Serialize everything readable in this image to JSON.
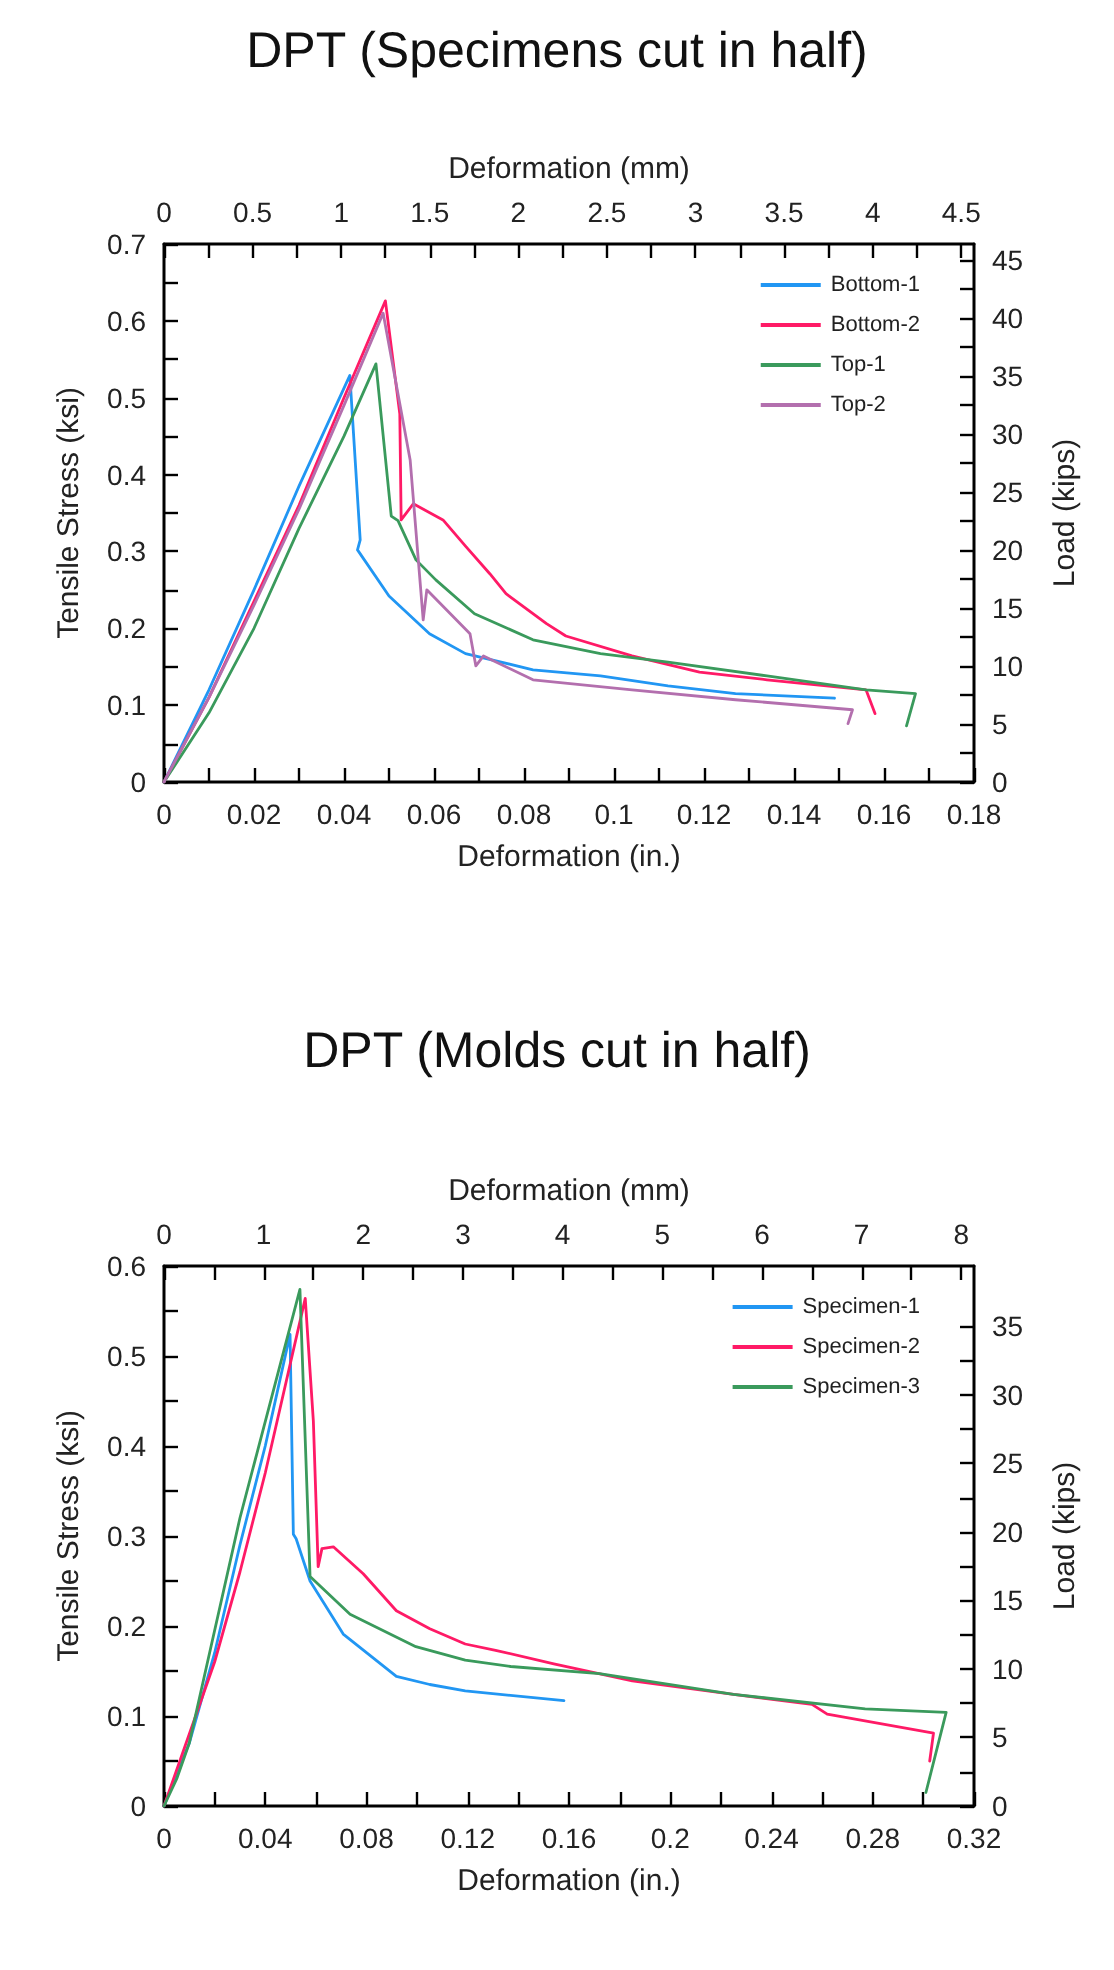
{
  "chart_data": [
    {
      "type": "line",
      "title": "DPT (Specimens cut in half)",
      "xlabel": "Deformation (in.)",
      "ylabel": "Tensile Stress (ksi)",
      "x2label": "Deformation (mm)",
      "y2label": "Load (kips)",
      "legend": "top right",
      "xlim": [
        0,
        0.18
      ],
      "xticks": [
        0,
        0.02,
        0.04,
        0.06,
        0.08,
        0.1,
        0.12,
        0.14,
        0.16,
        0.18
      ],
      "ylim": [
        0,
        0.7
      ],
      "yticks": [
        0,
        0.1,
        0.2,
        0.3,
        0.4,
        0.5,
        0.6,
        0.7
      ],
      "x2lim": [
        0,
        4.572
      ],
      "x2ticks": [
        0,
        0.5,
        1,
        1.5,
        2,
        2.5,
        3,
        3.5,
        4,
        4.5
      ],
      "y2lim": [
        0,
        46.4
      ],
      "y2ticks": [
        0,
        5,
        10,
        15,
        20,
        25,
        30,
        35,
        40,
        45
      ],
      "series": [
        {
          "name": "Bottom-1",
          "color": "#2196f3",
          "x": [
            0,
            0.01,
            0.02,
            0.03,
            0.0413,
            0.0436,
            0.043,
            0.05,
            0.059,
            0.067,
            0.082,
            0.097,
            0.112,
            0.127,
            0.149
          ],
          "values": [
            0,
            0.12,
            0.25,
            0.385,
            0.529,
            0.315,
            0.302,
            0.242,
            0.193,
            0.167,
            0.146,
            0.138,
            0.125,
            0.115,
            0.109
          ]
        },
        {
          "name": "Bottom-2",
          "color": "#ff1a66",
          "x": [
            0,
            0.01,
            0.02,
            0.03,
            0.04,
            0.0492,
            0.0524,
            0.0527,
            0.0554,
            0.062,
            0.067,
            0.0724,
            0.076,
            0.085,
            0.0893,
            0.104,
            0.119,
            0.134,
            0.156,
            0.158
          ],
          "values": [
            0,
            0.11,
            0.235,
            0.36,
            0.5,
            0.626,
            0.479,
            0.341,
            0.362,
            0.341,
            0.307,
            0.271,
            0.245,
            0.206,
            0.19,
            0.164,
            0.143,
            0.133,
            0.12,
            0.089
          ]
        },
        {
          "name": "Top-1",
          "color": "#3a9a5c",
          "x": [
            0,
            0.01,
            0.02,
            0.03,
            0.04,
            0.0471,
            0.0505,
            0.052,
            0.056,
            0.0604,
            0.069,
            0.082,
            0.097,
            0.112,
            0.134,
            0.156,
            0.167,
            0.165
          ],
          "values": [
            0,
            0.09,
            0.2,
            0.33,
            0.45,
            0.544,
            0.346,
            0.34,
            0.289,
            0.263,
            0.219,
            0.185,
            0.167,
            0.156,
            0.138,
            0.12,
            0.115,
            0.073
          ]
        },
        {
          "name": "Top-2",
          "color": "#b36fae",
          "x": [
            0,
            0.01,
            0.02,
            0.03,
            0.04,
            0.0487,
            0.0547,
            0.0576,
            0.0584,
            0.068,
            0.0693,
            0.071,
            0.082,
            0.104,
            0.127,
            0.153,
            0.152
          ],
          "values": [
            0,
            0.11,
            0.23,
            0.355,
            0.49,
            0.61,
            0.419,
            0.211,
            0.25,
            0.193,
            0.151,
            0.164,
            0.133,
            0.12,
            0.107,
            0.094,
            0.076
          ]
        }
      ]
    },
    {
      "type": "line",
      "title": "DPT (Molds cut in half)",
      "xlabel": "Deformation (in.)",
      "ylabel": "Tensile Stress (ksi)",
      "x2label": "Deformation (mm)",
      "y2label": "Load (kips)",
      "legend": "top right",
      "xlim": [
        0,
        0.32
      ],
      "xticks": [
        0,
        0.04,
        0.08,
        0.12,
        0.16,
        0.2,
        0.24,
        0.28,
        0.32
      ],
      "ylim": [
        0,
        0.6
      ],
      "yticks": [
        0,
        0.1,
        0.2,
        0.3,
        0.4,
        0.5,
        0.6
      ],
      "x2lim": [
        0,
        8.128
      ],
      "x2ticks": [
        0,
        1,
        2,
        3,
        4,
        5,
        6,
        7,
        8
      ],
      "y2lim": [
        0,
        39.4
      ],
      "y2ticks": [
        0,
        5,
        10,
        15,
        20,
        25,
        30,
        35
      ],
      "series": [
        {
          "name": "Specimen-1",
          "color": "#2196f3",
          "x": [
            0,
            0.01,
            0.02,
            0.03,
            0.04,
            0.0498,
            0.0511,
            0.0522,
            0.0577,
            0.0708,
            0.0918,
            0.105,
            0.119,
            0.158
          ],
          "values": [
            0,
            0.07,
            0.17,
            0.29,
            0.4,
            0.524,
            0.302,
            0.297,
            0.25,
            0.191,
            0.144,
            0.135,
            0.128,
            0.117
          ]
        },
        {
          "name": "Specimen-2",
          "color": "#ff1a66",
          "x": [
            0,
            0.005,
            0.01,
            0.02,
            0.03,
            0.04,
            0.0558,
            0.059,
            0.0609,
            0.0624,
            0.0669,
            0.0787,
            0.0918,
            0.105,
            0.119,
            0.131,
            0.154,
            0.185,
            0.225,
            0.256,
            0.262,
            0.304,
            0.3025
          ],
          "values": [
            0,
            0.04,
            0.08,
            0.16,
            0.26,
            0.37,
            0.564,
            0.428,
            0.266,
            0.286,
            0.288,
            0.258,
            0.217,
            0.197,
            0.18,
            0.173,
            0.158,
            0.139,
            0.124,
            0.113,
            0.102,
            0.081,
            0.05
          ]
        },
        {
          "name": "Specimen-3",
          "color": "#3a9a5c",
          "x": [
            0,
            0.005,
            0.01,
            0.014,
            0.03,
            0.0537,
            0.0577,
            0.0735,
            0.0995,
            0.119,
            0.137,
            0.172,
            0.225,
            0.277,
            0.309,
            0.301
          ],
          "values": [
            0,
            0.03,
            0.07,
            0.12,
            0.32,
            0.574,
            0.255,
            0.213,
            0.177,
            0.162,
            0.155,
            0.147,
            0.124,
            0.108,
            0.104,
            0.015
          ]
        }
      ]
    }
  ]
}
